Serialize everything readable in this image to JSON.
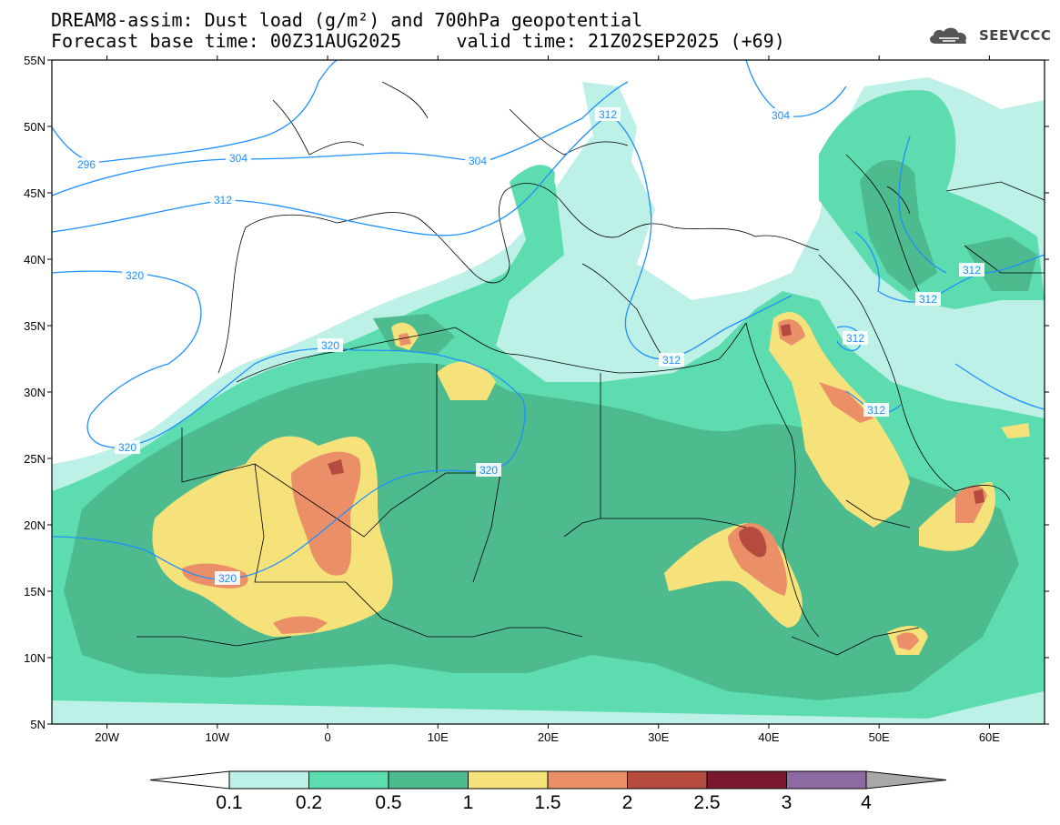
{
  "title": {
    "line1": "DREAM8-assim: Dust load (g/m²) and 700hPa geopotential",
    "line2": "Forecast base time: 00Z31AUG2025     valid time: 21Z02SEP2025 (+69)"
  },
  "logo": {
    "text": "SEEVCCC",
    "icon": "cloud-icon"
  },
  "axes": {
    "lat_labels": [
      "55N",
      "50N",
      "45N",
      "40N",
      "35N",
      "30N",
      "25N",
      "20N",
      "15N",
      "10N",
      "5N"
    ],
    "lon_labels": [
      "20W",
      "10W",
      "0",
      "10E",
      "20E",
      "30E",
      "40E",
      "50E",
      "60E"
    ]
  },
  "contour_labels": [
    "296",
    "304",
    "304",
    "304",
    "312",
    "312",
    "312",
    "312",
    "312",
    "312",
    "320",
    "320",
    "320",
    "320",
    "320"
  ],
  "colorbar": {
    "levels": [
      "0.1",
      "0.2",
      "0.5",
      "1",
      "1.5",
      "2",
      "2.5",
      "3",
      "4"
    ],
    "colors": [
      "#bdf0e6",
      "#5ddcb0",
      "#4dbb8e",
      "#f5e27a",
      "#ea8f68",
      "#b54a3f",
      "#7a1830",
      "#8e6aa2",
      "#a8a8a8"
    ]
  },
  "colors": {
    "land_shade_light": "#bdf0e6",
    "land_shade_mid": "#5ddcb0",
    "land_shade_dark": "#4dbb8e",
    "dust_yellow": "#f5e27a",
    "dust_orange": "#ea8f68",
    "dust_red": "#b54a3f",
    "dust_darkred": "#7a1830",
    "contour": "#1e90ff"
  }
}
